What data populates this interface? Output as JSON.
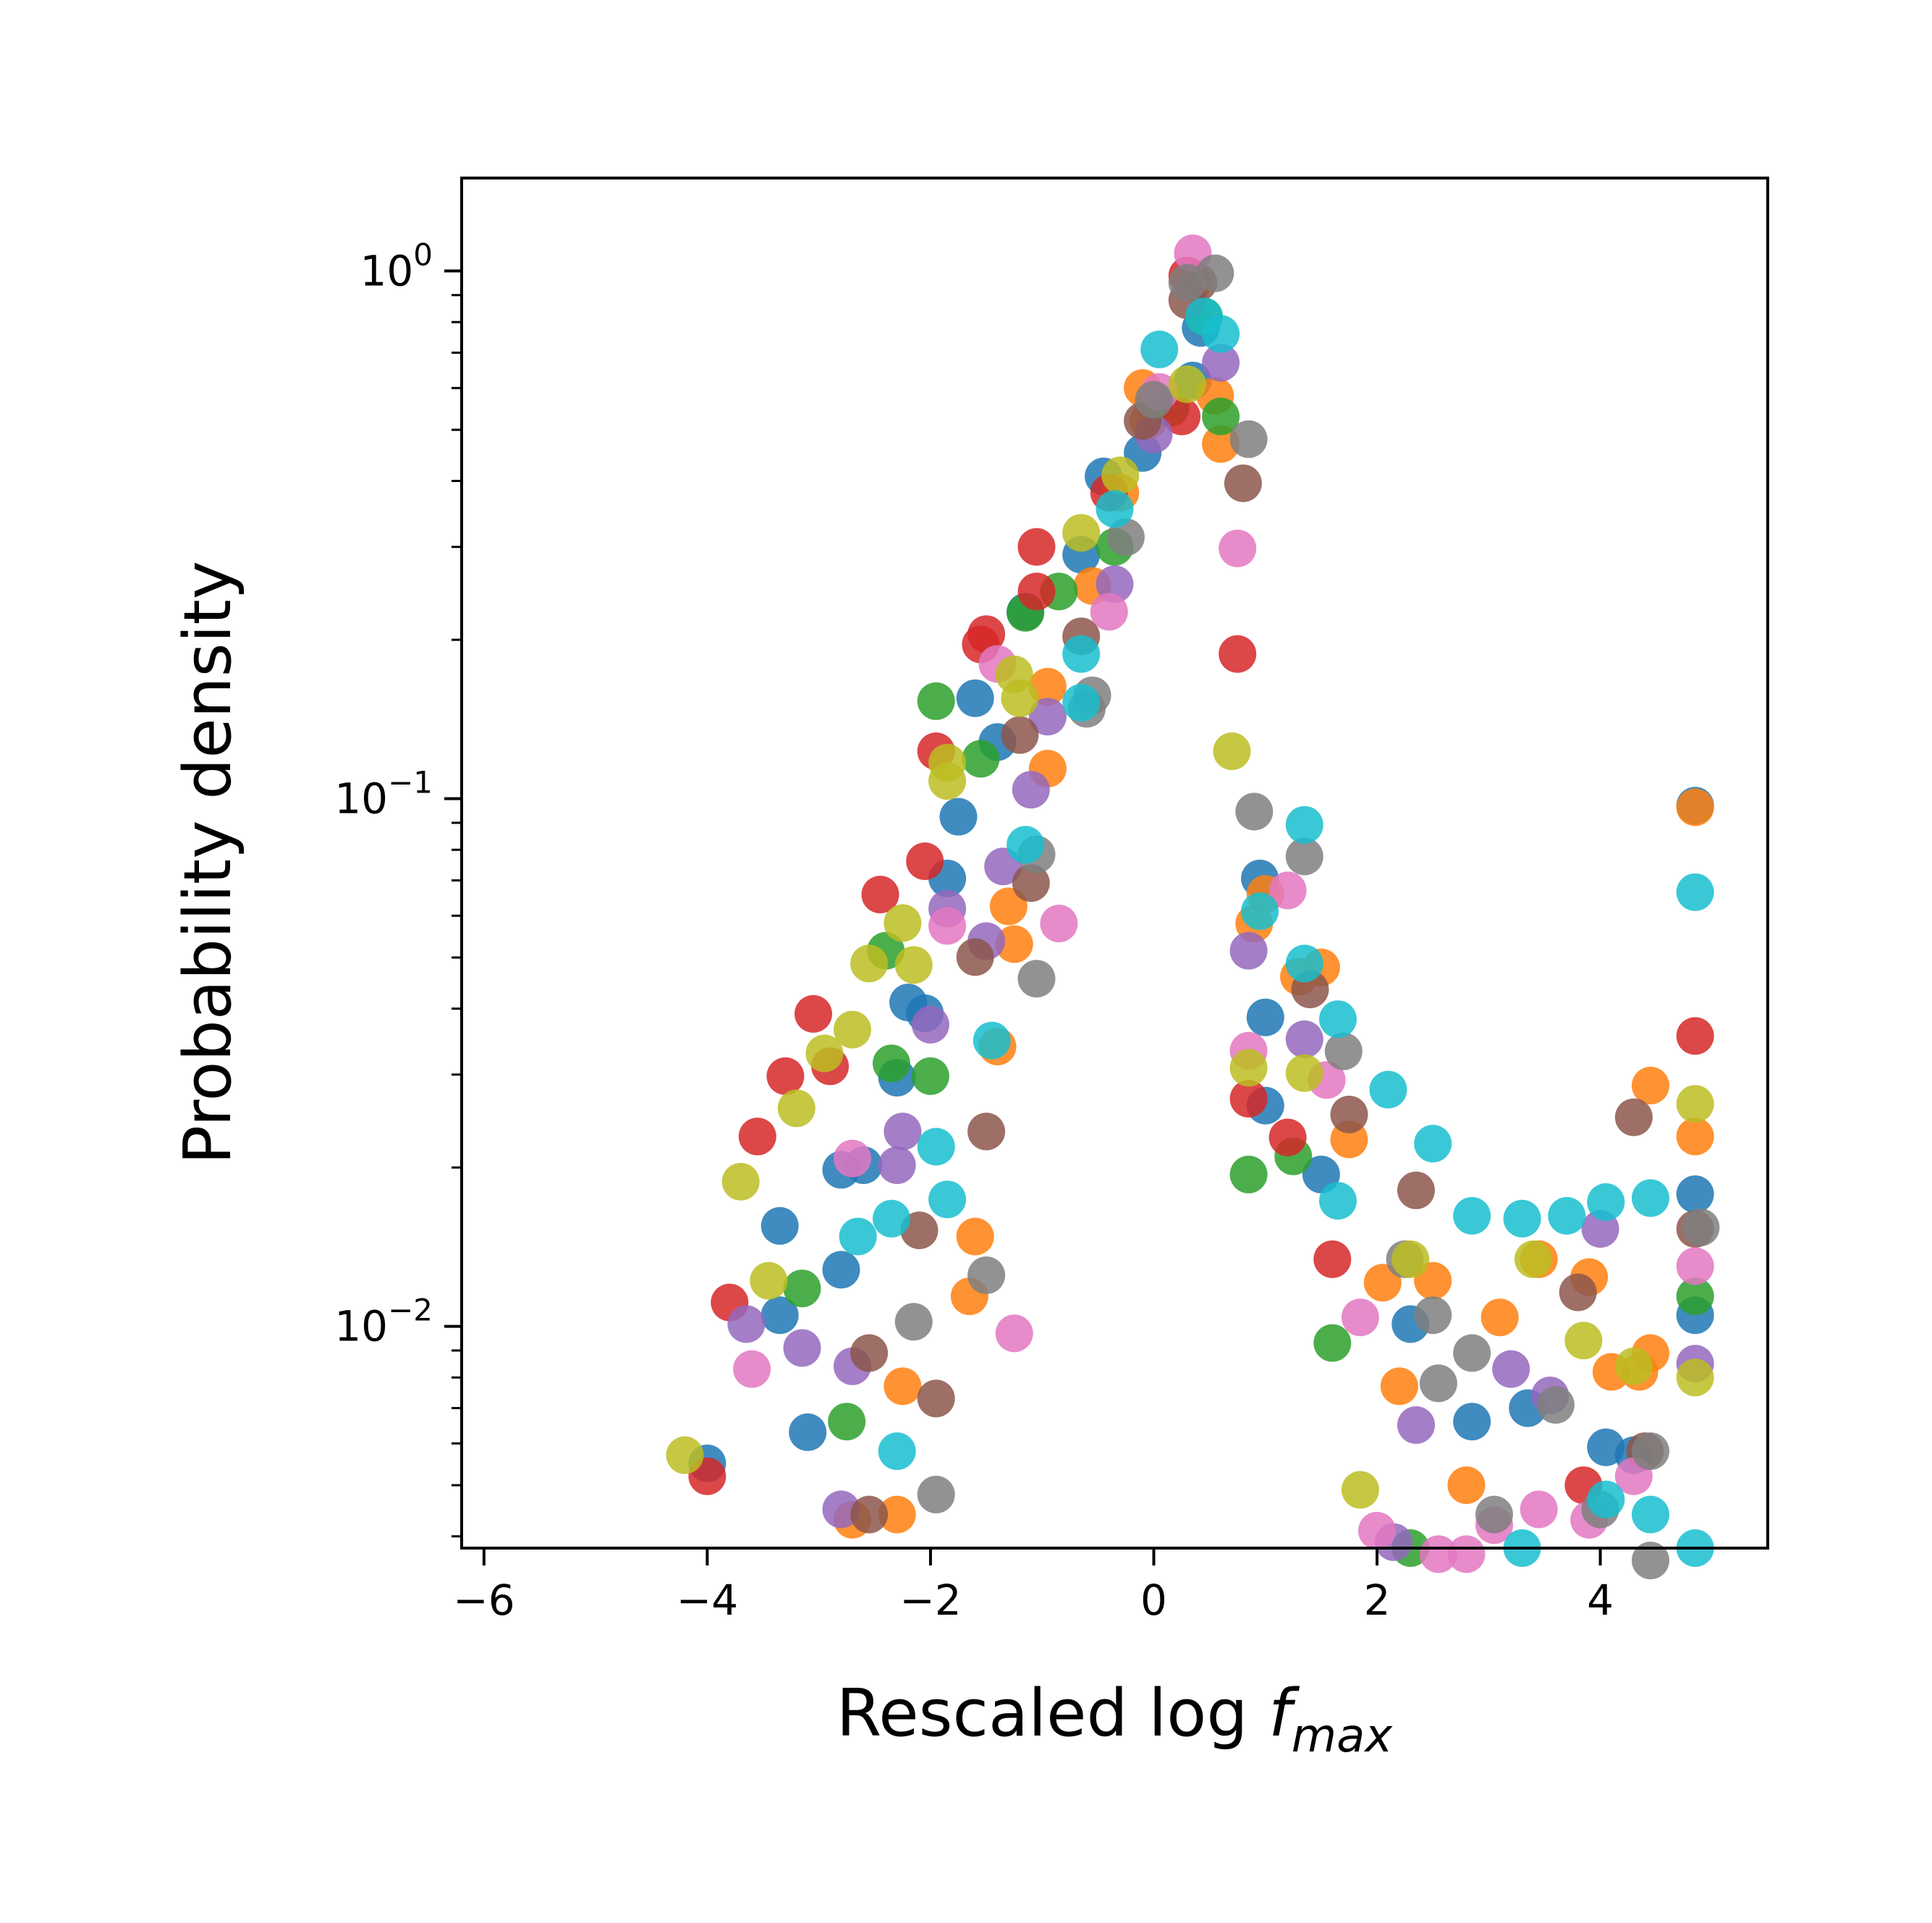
{
  "chart_data": {
    "type": "scatter",
    "title": "",
    "xlabel": "Rescaled log f_max",
    "ylabel": "Probability density",
    "xlabel_parts": {
      "text": "Rescaled log ",
      "var": "f",
      "sub": "max"
    },
    "xlim": [
      -6.2,
      5.5
    ],
    "ylim": [
      0.0038,
      1.5
    ],
    "yscale": "log",
    "grid": false,
    "legend": "none",
    "x_ticks": [
      {
        "v": -6,
        "label": "−6"
      },
      {
        "v": -4,
        "label": "−4"
      },
      {
        "v": -2,
        "label": "−2"
      },
      {
        "v": 0,
        "label": "0"
      },
      {
        "v": 2,
        "label": "2"
      },
      {
        "v": 4,
        "label": "4"
      }
    ],
    "y_ticks": [
      {
        "v": 1,
        "base": "10",
        "exp": "0"
      },
      {
        "v": 0.1,
        "base": "10",
        "exp": "−1"
      },
      {
        "v": 0.01,
        "base": "10",
        "exp": "−2"
      }
    ],
    "series": [
      {
        "color": "#1f77b4",
        "points": [
          [
            -4.0,
            0.0055
          ],
          [
            -3.35,
            0.0155
          ],
          [
            -3.35,
            0.0105
          ],
          [
            -3.1,
            0.0063
          ],
          [
            -2.8,
            0.0198
          ],
          [
            -2.8,
            0.0128
          ],
          [
            -2.6,
            0.0202
          ],
          [
            -2.3,
            0.0296
          ],
          [
            -2.2,
            0.0411
          ],
          [
            -2.05,
            0.0392
          ],
          [
            -1.85,
            0.0706
          ],
          [
            -1.75,
            0.0924
          ],
          [
            -1.6,
            0.155
          ],
          [
            -1.4,
            0.128
          ],
          [
            -1.15,
            0.226
          ],
          [
            -0.65,
            0.29
          ],
          [
            -0.45,
            0.408
          ],
          [
            -0.1,
            0.452
          ],
          [
            0.0,
            0.56
          ],
          [
            0.35,
            0.62
          ],
          [
            0.42,
            0.78
          ],
          [
            0.95,
            0.0706
          ],
          [
            1.0,
            0.0385
          ],
          [
            1.0,
            0.0262
          ],
          [
            1.5,
            0.0194
          ],
          [
            2.3,
            0.0101
          ],
          [
            2.85,
            0.0066
          ],
          [
            3.35,
            0.007
          ],
          [
            4.05,
            0.0059
          ],
          [
            4.3,
            0.0057
          ],
          [
            4.85,
            0.0178
          ],
          [
            4.85,
            0.0105
          ],
          [
            4.85,
            0.097
          ]
        ]
      },
      {
        "color": "#ff7f0e",
        "points": [
          [
            -2.7,
            0.0043
          ],
          [
            -2.3,
            0.0044
          ],
          [
            -2.25,
            0.0077
          ],
          [
            -1.6,
            0.0148
          ],
          [
            -1.65,
            0.0114
          ],
          [
            -1.3,
            0.0625
          ],
          [
            -1.25,
            0.053
          ],
          [
            -1.4,
            0.0339
          ],
          [
            -0.95,
            0.114
          ],
          [
            -0.95,
            0.163
          ],
          [
            -0.55,
            0.253
          ],
          [
            -0.3,
            0.38
          ],
          [
            -0.1,
            0.6
          ],
          [
            -0.05,
            0.52
          ],
          [
            0.35,
            0.95
          ],
          [
            0.55,
            0.58
          ],
          [
            0.6,
            0.47
          ],
          [
            0.9,
            0.058
          ],
          [
            1.0,
            0.066
          ],
          [
            1.3,
            0.046
          ],
          [
            1.5,
            0.0479
          ],
          [
            1.75,
            0.0226
          ],
          [
            2.05,
            0.0121
          ],
          [
            2.2,
            0.0077
          ],
          [
            2.5,
            0.0122
          ],
          [
            2.8,
            0.005
          ],
          [
            3.1,
            0.0104
          ],
          [
            3.45,
            0.0134
          ],
          [
            3.9,
            0.0124
          ],
          [
            4.1,
            0.0082
          ],
          [
            4.35,
            0.0082
          ],
          [
            4.45,
            0.0089
          ],
          [
            4.45,
            0.0286
          ],
          [
            4.85,
            0.0229
          ],
          [
            4.85,
            0.0963
          ]
        ]
      },
      {
        "color": "#2ca02c",
        "points": [
          [
            -3.15,
            0.0118
          ],
          [
            -2.75,
            0.0066
          ],
          [
            -2.4,
            0.0515
          ],
          [
            -2.35,
            0.0315
          ],
          [
            -2.0,
            0.0298
          ],
          [
            -1.95,
            0.153
          ],
          [
            -1.55,
            0.119
          ],
          [
            -1.15,
            0.225
          ],
          [
            -0.85,
            0.247
          ],
          [
            -0.35,
            0.3
          ],
          [
            0.15,
            0.55
          ],
          [
            0.45,
            0.82
          ],
          [
            0.6,
            0.53
          ],
          [
            0.85,
            0.0194
          ],
          [
            1.25,
            0.021
          ],
          [
            1.6,
            0.0093
          ],
          [
            2.3,
            0.0038
          ],
          [
            4.85,
            0.0114
          ]
        ]
      },
      {
        "color": "#d62728",
        "points": [
          [
            -4.0,
            0.0052
          ],
          [
            -3.8,
            0.0111
          ],
          [
            -3.55,
            0.0229
          ],
          [
            -3.3,
            0.0298
          ],
          [
            -3.05,
            0.0391
          ],
          [
            -2.9,
            0.0311
          ],
          [
            -2.45,
            0.0658
          ],
          [
            -2.05,
            0.0761
          ],
          [
            -1.95,
            0.123
          ],
          [
            -1.55,
            0.196
          ],
          [
            -1.5,
            0.205
          ],
          [
            -1.05,
            0.3
          ],
          [
            -1.05,
            0.247
          ],
          [
            -0.4,
            0.38
          ],
          [
            0.25,
            0.53
          ],
          [
            0.3,
            0.98
          ],
          [
            0.75,
            0.188
          ],
          [
            0.85,
            0.027
          ],
          [
            1.2,
            0.0228
          ],
          [
            1.6,
            0.0134
          ],
          [
            3.85,
            0.005
          ],
          [
            4.85,
            0.0355
          ]
        ]
      },
      {
        "color": "#9467bd",
        "points": [
          [
            -3.65,
            0.0101
          ],
          [
            -3.15,
            0.0091
          ],
          [
            -2.8,
            0.0045
          ],
          [
            -2.7,
            0.0084
          ],
          [
            -2.3,
            0.0202
          ],
          [
            -2.25,
            0.0234
          ],
          [
            -2.0,
            0.0373
          ],
          [
            -1.85,
            0.0619
          ],
          [
            -1.5,
            0.0537
          ],
          [
            -1.35,
            0.0744
          ],
          [
            -1.1,
            0.104
          ],
          [
            -0.95,
            0.143
          ],
          [
            -0.35,
            0.255
          ],
          [
            0.0,
            0.49
          ],
          [
            0.6,
            0.67
          ],
          [
            0.85,
            0.0515
          ],
          [
            1.35,
            0.035
          ],
          [
            2.15,
            0.0039
          ],
          [
            2.35,
            0.0065
          ],
          [
            3.2,
            0.0083
          ],
          [
            3.55,
            0.0074
          ],
          [
            4.0,
            0.0153
          ],
          [
            4.85,
            0.0085
          ]
        ]
      },
      {
        "color": "#8c564b",
        "points": [
          [
            -2.55,
            0.0089
          ],
          [
            -2.55,
            0.0044
          ],
          [
            -2.1,
            0.0152
          ],
          [
            -1.95,
            0.0073
          ],
          [
            -1.5,
            0.0234
          ],
          [
            -1.6,
            0.0501
          ],
          [
            -1.1,
            0.0692
          ],
          [
            -1.2,
            0.132
          ],
          [
            -0.65,
            0.203
          ],
          [
            -0.1,
            0.52
          ],
          [
            0.3,
            0.88
          ],
          [
            0.4,
            0.95
          ],
          [
            0.8,
            0.396
          ],
          [
            1.4,
            0.0435
          ],
          [
            1.75,
            0.0252
          ],
          [
            2.35,
            0.0181
          ],
          [
            3.8,
            0.0116
          ],
          [
            4.3,
            0.0249
          ],
          [
            4.4,
            0.0058
          ],
          [
            4.85,
            0.0153
          ]
        ]
      },
      {
        "color": "#e377c2",
        "points": [
          [
            -3.6,
            0.0083
          ],
          [
            -2.7,
            0.0208
          ],
          [
            -1.85,
            0.0574
          ],
          [
            -1.25,
            0.0097
          ],
          [
            -1.4,
            0.18
          ],
          [
            -0.85,
            0.058
          ],
          [
            -0.4,
            0.226
          ],
          [
            0.05,
            0.59
          ],
          [
            0.35,
            1.08
          ],
          [
            0.75,
            0.298
          ],
          [
            0.85,
            0.0333
          ],
          [
            1.2,
            0.067
          ],
          [
            1.55,
            0.0293
          ],
          [
            1.85,
            0.0104
          ],
          [
            2.0,
            0.0041
          ],
          [
            2.55,
            0.0037
          ],
          [
            2.8,
            0.0037
          ],
          [
            3.05,
            0.0042
          ],
          [
            3.45,
            0.0045
          ],
          [
            3.9,
            0.0043
          ],
          [
            4.3,
            0.0052
          ],
          [
            4.85,
            0.013
          ]
        ]
      },
      {
        "color": "#7f7f7f",
        "points": [
          [
            -2.15,
            0.0102
          ],
          [
            -1.95,
            0.0048
          ],
          [
            -1.5,
            0.0125
          ],
          [
            -1.05,
            0.0784
          ],
          [
            -1.05,
            0.0456
          ],
          [
            -0.6,
            0.148
          ],
          [
            -0.55,
            0.157
          ],
          [
            -0.25,
            0.313
          ],
          [
            0.0,
            0.57
          ],
          [
            0.3,
            0.95
          ],
          [
            0.55,
            0.99
          ],
          [
            0.85,
            0.48
          ],
          [
            0.9,
            0.0945
          ],
          [
            1.35,
            0.0777
          ],
          [
            1.7,
            0.0332
          ],
          [
            2.25,
            0.0134
          ],
          [
            2.5,
            0.0105
          ],
          [
            2.55,
            0.0078
          ],
          [
            2.85,
            0.0089
          ],
          [
            3.05,
            0.0044
          ],
          [
            3.6,
            0.0071
          ],
          [
            4.0,
            0.0045
          ],
          [
            4.45,
            0.0058
          ],
          [
            4.45,
            0.0036
          ],
          [
            4.9,
            0.0154
          ]
        ]
      },
      {
        "color": "#bcbd22",
        "points": [
          [
            -4.2,
            0.0057
          ],
          [
            -3.7,
            0.0188
          ],
          [
            -3.45,
            0.0122
          ],
          [
            -3.2,
            0.0259
          ],
          [
            -2.95,
            0.0329
          ],
          [
            -2.7,
            0.0365
          ],
          [
            -2.55,
            0.0487
          ],
          [
            -2.25,
            0.0581
          ],
          [
            -2.15,
            0.0484
          ],
          [
            -1.85,
            0.108
          ],
          [
            -1.85,
            0.117
          ],
          [
            -1.25,
            0.172
          ],
          [
            -1.2,
            0.155
          ],
          [
            -0.65,
            0.319
          ],
          [
            -0.3,
            0.41
          ],
          [
            0.3,
            0.61
          ],
          [
            0.7,
            0.123
          ],
          [
            0.85,
            0.0309
          ],
          [
            1.35,
            0.0302
          ],
          [
            1.85,
            0.0049
          ],
          [
            2.3,
            0.0134
          ],
          [
            3.4,
            0.0134
          ],
          [
            3.85,
            0.0094
          ],
          [
            4.3,
            0.0084
          ],
          [
            4.85,
            0.0264
          ],
          [
            4.85,
            0.008
          ]
        ]
      },
      {
        "color": "#17becf",
        "points": [
          [
            -2.65,
            0.0148
          ],
          [
            -2.35,
            0.016
          ],
          [
            -2.3,
            0.0058
          ],
          [
            -1.95,
            0.0219
          ],
          [
            -1.85,
            0.0174
          ],
          [
            -1.45,
            0.0348
          ],
          [
            -1.15,
            0.0818
          ],
          [
            -0.65,
            0.188
          ],
          [
            -0.65,
            0.152
          ],
          [
            -0.35,
            0.354
          ],
          [
            0.05,
            0.71
          ],
          [
            0.45,
            0.82
          ],
          [
            0.6,
            0.76
          ],
          [
            0.95,
            0.0612
          ],
          [
            1.35,
            0.0892
          ],
          [
            1.35,
            0.0487
          ],
          [
            1.65,
            0.0173
          ],
          [
            1.65,
            0.0382
          ],
          [
            2.1,
            0.0281
          ],
          [
            2.5,
            0.0222
          ],
          [
            2.85,
            0.0162
          ],
          [
            3.3,
            0.016
          ],
          [
            3.3,
            0.0038
          ],
          [
            3.7,
            0.0162
          ],
          [
            4.05,
            0.0172
          ],
          [
            4.05,
            0.0047
          ],
          [
            4.45,
            0.0175
          ],
          [
            4.45,
            0.0044
          ],
          [
            4.85,
            0.0038
          ],
          [
            4.85,
            0.0665
          ]
        ]
      }
    ]
  }
}
